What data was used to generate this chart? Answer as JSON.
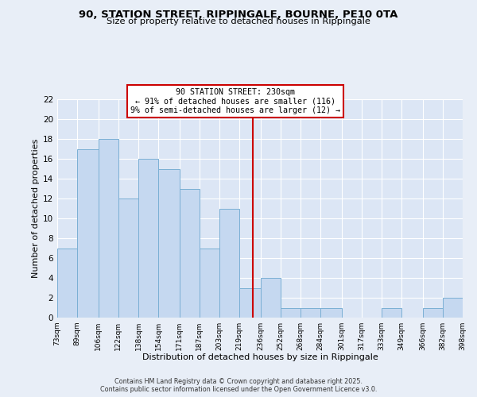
{
  "title": "90, STATION STREET, RIPPINGALE, BOURNE, PE10 0TA",
  "subtitle": "Size of property relative to detached houses in Rippingale",
  "xlabel": "Distribution of detached houses by size in Rippingale",
  "ylabel": "Number of detached properties",
  "bin_edges": [
    73,
    89,
    106,
    122,
    138,
    154,
    171,
    187,
    203,
    219,
    236,
    252,
    268,
    284,
    301,
    317,
    333,
    349,
    366,
    382,
    398
  ],
  "bin_labels": [
    "73sqm",
    "89sqm",
    "106sqm",
    "122sqm",
    "138sqm",
    "154sqm",
    "171sqm",
    "187sqm",
    "203sqm",
    "219sqm",
    "236sqm",
    "252sqm",
    "268sqm",
    "284sqm",
    "301sqm",
    "317sqm",
    "333sqm",
    "349sqm",
    "366sqm",
    "382sqm",
    "398sqm"
  ],
  "counts": [
    7,
    17,
    18,
    12,
    16,
    15,
    13,
    7,
    11,
    3,
    4,
    1,
    1,
    1,
    0,
    0,
    1,
    0,
    1,
    2
  ],
  "bar_color": "#c5d8f0",
  "bar_edge_color": "#7aafd4",
  "vline_x": 230,
  "vline_color": "#cc0000",
  "annotation_title": "90 STATION STREET: 230sqm",
  "annotation_line1": "← 91% of detached houses are smaller (116)",
  "annotation_line2": "9% of semi-detached houses are larger (12) →",
  "annotation_box_color": "white",
  "annotation_box_edge": "#cc0000",
  "ylim": [
    0,
    22
  ],
  "yticks": [
    0,
    2,
    4,
    6,
    8,
    10,
    12,
    14,
    16,
    18,
    20,
    22
  ],
  "bg_color": "#e8eef7",
  "plot_bg_color": "#dce6f5",
  "grid_color": "white",
  "footer_line1": "Contains HM Land Registry data © Crown copyright and database right 2025.",
  "footer_line2": "Contains public sector information licensed under the Open Government Licence v3.0."
}
